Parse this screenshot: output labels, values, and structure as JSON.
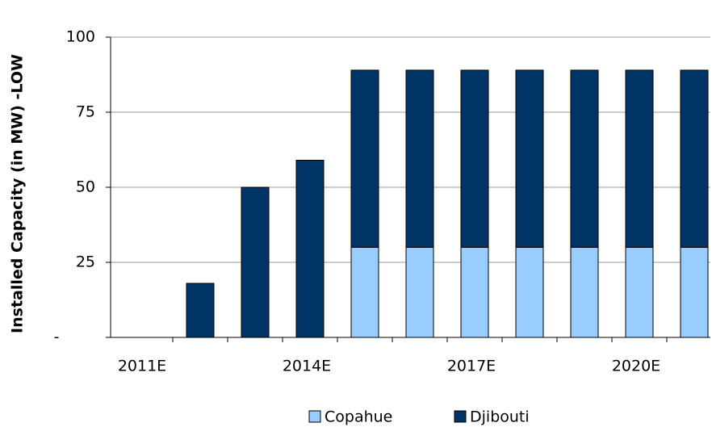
{
  "chart_data": {
    "type": "stacked_bar",
    "y_label": "Installed Capacity (in MW) -LOW",
    "categories": [
      "2011E",
      null,
      null,
      "2014E",
      null,
      null,
      "2017E",
      null,
      null,
      "2020E",
      null
    ],
    "series": [
      {
        "name": "Copahue",
        "color": "#99ccff",
        "values": [
          0,
          0,
          0,
          0,
          30,
          30,
          30,
          30,
          30,
          30,
          30
        ]
      },
      {
        "name": "Djibouti",
        "color": "#003366",
        "values": [
          0,
          18,
          50,
          59,
          59,
          59,
          59,
          59,
          59,
          59,
          59
        ]
      }
    ],
    "ylim": [
      0,
      100
    ],
    "yticks": [
      {
        "value": 0,
        "label": "-"
      },
      25,
      50,
      75,
      100
    ],
    "grid": true,
    "legend": "bottom"
  }
}
